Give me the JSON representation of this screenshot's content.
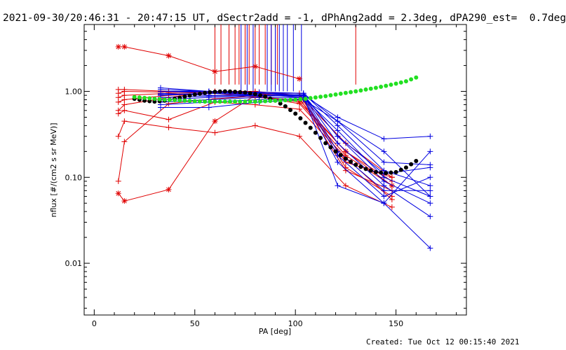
{
  "title": "2021-09-30/20:46:31 - 20:47:15 UT, dSectr2add = -1, dPhAng2add = 2.3deg, dPA290_est=  0.7deg",
  "footer": "Created: Tue Oct 12 00:15:40 2021",
  "colors": {
    "red": "#e00000",
    "blue": "#0000e0",
    "black": "#000000",
    "green": "#22e022",
    "axis": "#000000"
  },
  "chart_data": {
    "type": "line",
    "xlabel": "PA [deg]",
    "ylabel": "nflux [#/(cm2 s sr MeV)]",
    "xlim": [
      -5,
      185
    ],
    "ylim": [
      0.0025,
      6.0
    ],
    "yscale": "log",
    "xticks": [
      0,
      50,
      100,
      150
    ],
    "xtick_labels": [
      "0",
      "50",
      "100",
      "150"
    ],
    "yticks": [
      0.01,
      0.1,
      1.0
    ],
    "ytick_labels": [
      "0.01",
      "0.10",
      "1.00"
    ],
    "vertical_lines": {
      "red": {
        "x": [
          60,
          63,
          67,
          70,
          72,
          75,
          77,
          80,
          82,
          85,
          88,
          91,
          130
        ],
        "y_bottom": 1.2,
        "y_top": 6.0
      },
      "blue": {
        "x": [
          73,
          76,
          79,
          86,
          88,
          90,
          92,
          94,
          96,
          99,
          103
        ],
        "y_bottom": 1.0,
        "y_top": 6.0
      }
    },
    "series": [
      {
        "color": "red",
        "marker": "asterisk",
        "x": [
          12,
          15,
          37,
          60,
          80,
          102
        ],
        "y": [
          3.3,
          3.3,
          2.6,
          1.7,
          1.95,
          1.4
        ]
      },
      {
        "color": "red",
        "marker": "asterisk",
        "x": [
          12,
          15,
          37,
          60,
          80,
          102,
          125,
          148
        ],
        "y": [
          0.065,
          0.053,
          0.072,
          0.45,
          0.9,
          0.75,
          0.2,
          0.08
        ]
      },
      {
        "color": "red",
        "marker": "plus",
        "x": [
          12,
          15,
          37,
          60,
          80,
          102,
          125,
          148
        ],
        "y": [
          0.09,
          0.26,
          0.72,
          0.82,
          0.88,
          0.72,
          0.18,
          0.08
        ]
      },
      {
        "color": "red",
        "marker": "plus",
        "x": [
          12,
          15,
          37,
          60,
          80,
          102,
          125,
          148
        ],
        "y": [
          0.3,
          0.45,
          0.38,
          0.33,
          0.4,
          0.3,
          0.08,
          0.045
        ]
      },
      {
        "color": "red",
        "marker": "plus",
        "x": [
          12,
          15,
          37,
          60,
          80,
          102,
          125,
          148
        ],
        "y": [
          0.6,
          0.7,
          0.85,
          1.0,
          1.0,
          0.9,
          0.25,
          0.1
        ]
      },
      {
        "color": "red",
        "marker": "plus",
        "x": [
          12,
          15,
          37,
          60,
          80,
          102,
          125,
          148
        ],
        "y": [
          0.75,
          0.8,
          0.9,
          0.95,
          0.85,
          0.8,
          0.2,
          0.09
        ]
      },
      {
        "color": "red",
        "marker": "plus",
        "x": [
          12,
          15,
          37,
          60,
          80,
          102,
          125,
          148
        ],
        "y": [
          0.85,
          0.9,
          0.95,
          0.98,
          0.92,
          0.9,
          0.15,
          0.1
        ]
      },
      {
        "color": "red",
        "marker": "plus",
        "x": [
          12,
          15,
          37,
          60,
          80,
          102,
          125,
          148
        ],
        "y": [
          0.95,
          1.0,
          0.98,
          1.0,
          0.95,
          0.85,
          0.12,
          0.07
        ]
      },
      {
        "color": "red",
        "marker": "plus",
        "x": [
          12,
          15,
          37,
          60,
          80,
          102,
          125,
          148
        ],
        "y": [
          0.55,
          0.6,
          0.47,
          0.75,
          0.7,
          0.62,
          0.17,
          0.055
        ]
      },
      {
        "color": "red",
        "marker": "plus",
        "x": [
          12,
          15,
          37,
          60,
          80,
          102,
          125,
          148
        ],
        "y": [
          1.05,
          1.05,
          1.0,
          1.0,
          0.98,
          0.95,
          0.13,
          0.06
        ]
      },
      {
        "color": "blue",
        "marker": "plus",
        "x": [
          33,
          57,
          82,
          104,
          121,
          144,
          167
        ],
        "y": [
          1.1,
          1.0,
          0.95,
          0.9,
          0.5,
          0.28,
          0.3
        ]
      },
      {
        "color": "blue",
        "marker": "plus",
        "x": [
          33,
          57,
          82,
          104,
          121,
          144,
          167
        ],
        "y": [
          0.9,
          0.95,
          0.92,
          0.85,
          0.35,
          0.1,
          0.06
        ]
      },
      {
        "color": "blue",
        "marker": "plus",
        "x": [
          33,
          57,
          82,
          104,
          121,
          144,
          167
        ],
        "y": [
          0.65,
          0.65,
          0.75,
          0.8,
          0.45,
          0.15,
          0.14
        ]
      },
      {
        "color": "blue",
        "marker": "plus",
        "x": [
          33,
          57,
          82,
          104,
          121,
          144,
          167
        ],
        "y": [
          1.0,
          1.0,
          0.98,
          0.95,
          0.4,
          0.12,
          0.08
        ]
      },
      {
        "color": "blue",
        "marker": "plus",
        "x": [
          33,
          57,
          82,
          104,
          121,
          144,
          167
        ],
        "y": [
          0.95,
          0.9,
          0.9,
          0.92,
          0.3,
          0.09,
          0.05
        ]
      },
      {
        "color": "blue",
        "marker": "plus",
        "x": [
          33,
          57,
          82,
          104,
          121,
          144,
          167
        ],
        "y": [
          0.8,
          0.85,
          0.88,
          0.9,
          0.25,
          0.08,
          0.035
        ]
      },
      {
        "color": "blue",
        "marker": "plus",
        "x": [
          33,
          57,
          82,
          104,
          121,
          144,
          167
        ],
        "y": [
          1.05,
          1.0,
          0.96,
          0.9,
          0.2,
          0.07,
          0.07
        ]
      },
      {
        "color": "blue",
        "marker": "plus",
        "x": [
          33,
          57,
          82,
          104,
          121,
          144,
          167
        ],
        "y": [
          0.75,
          0.8,
          0.85,
          0.85,
          0.18,
          0.06,
          0.1
        ]
      },
      {
        "color": "blue",
        "marker": "plus",
        "x": [
          33,
          57,
          82,
          104,
          121,
          144,
          167
        ],
        "y": [
          0.7,
          0.75,
          0.8,
          0.82,
          0.15,
          0.05,
          0.2
        ]
      },
      {
        "color": "blue",
        "marker": "plus",
        "x": [
          33,
          57,
          82,
          104,
          121,
          144,
          167
        ],
        "y": [
          0.92,
          0.95,
          0.9,
          0.88,
          0.08,
          0.05,
          0.015
        ]
      },
      {
        "color": "blue",
        "marker": "plus",
        "x": [
          33,
          57,
          82,
          104,
          121,
          144,
          167
        ],
        "y": [
          0.85,
          0.88,
          0.9,
          0.9,
          0.3,
          0.11,
          0.13
        ]
      },
      {
        "color": "blue",
        "marker": "plus",
        "x": [
          33,
          57,
          82,
          104,
          121,
          144,
          167
        ],
        "y": [
          1.0,
          0.97,
          0.95,
          0.95,
          0.45,
          0.2,
          0.06
        ]
      },
      {
        "color": "black",
        "marker": "dot",
        "x": [
          20,
          25,
          30,
          35,
          40,
          45,
          50,
          55,
          60,
          65,
          70,
          75,
          80,
          85,
          90,
          95,
          100,
          105,
          110,
          115,
          120,
          125,
          130,
          135,
          140,
          145,
          150,
          155,
          160
        ],
        "y": [
          0.82,
          0.78,
          0.76,
          0.78,
          0.82,
          0.87,
          0.92,
          0.96,
          0.99,
          1.0,
          0.99,
          0.97,
          0.93,
          0.87,
          0.78,
          0.67,
          0.55,
          0.43,
          0.33,
          0.25,
          0.2,
          0.165,
          0.14,
          0.125,
          0.115,
          0.112,
          0.115,
          0.13,
          0.155
        ]
      },
      {
        "color": "green",
        "marker": "dot",
        "x": [
          20,
          25,
          30,
          35,
          40,
          45,
          50,
          55,
          60,
          65,
          70,
          75,
          80,
          85,
          90,
          95,
          100,
          105,
          110,
          115,
          120,
          125,
          130,
          135,
          140,
          145,
          150,
          155,
          160
        ],
        "y": [
          0.86,
          0.84,
          0.82,
          0.8,
          0.79,
          0.78,
          0.77,
          0.76,
          0.76,
          0.76,
          0.76,
          0.76,
          0.76,
          0.77,
          0.78,
          0.79,
          0.8,
          0.82,
          0.85,
          0.88,
          0.92,
          0.96,
          1.0,
          1.05,
          1.1,
          1.16,
          1.23,
          1.31,
          1.45
        ]
      }
    ]
  }
}
